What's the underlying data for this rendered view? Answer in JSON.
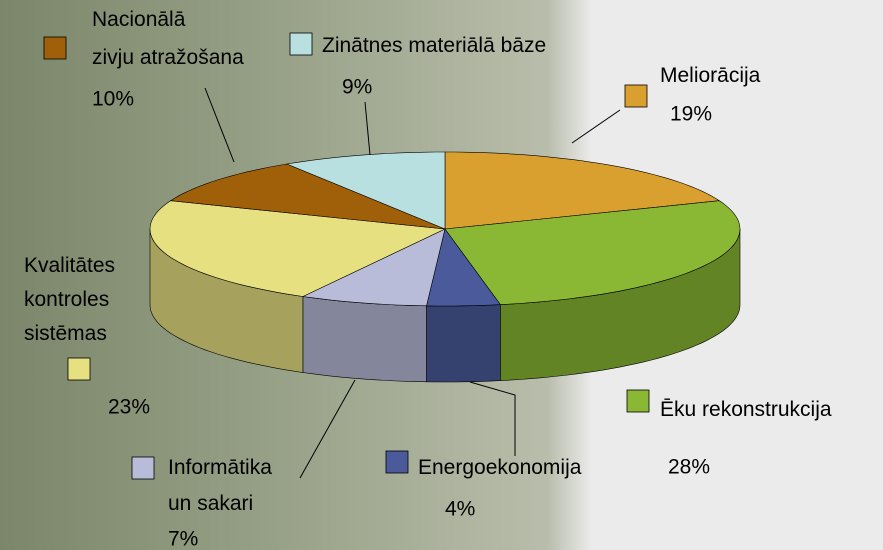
{
  "chart_data": {
    "type": "pie3d",
    "categories": [
      "Meliorācija",
      "Ēku rekonstrukcija",
      "Energoekonomija",
      "Informātika un sakari",
      "Kvalitātes kontroles sistēmas",
      "Nacionālā zivju atražošana",
      "Zinātnes materiālā bāze"
    ],
    "values": [
      19,
      28,
      4,
      7,
      23,
      10,
      9
    ],
    "value_labels": [
      "19%",
      "28%",
      "4%",
      "7%",
      "23%",
      "10%",
      "9%"
    ],
    "colors": [
      "#d9a030",
      "#8ab834",
      "#4a5a9a",
      "#b8bcd8",
      "#e6e080",
      "#a0600a",
      "#b8e0e0"
    ]
  }
}
